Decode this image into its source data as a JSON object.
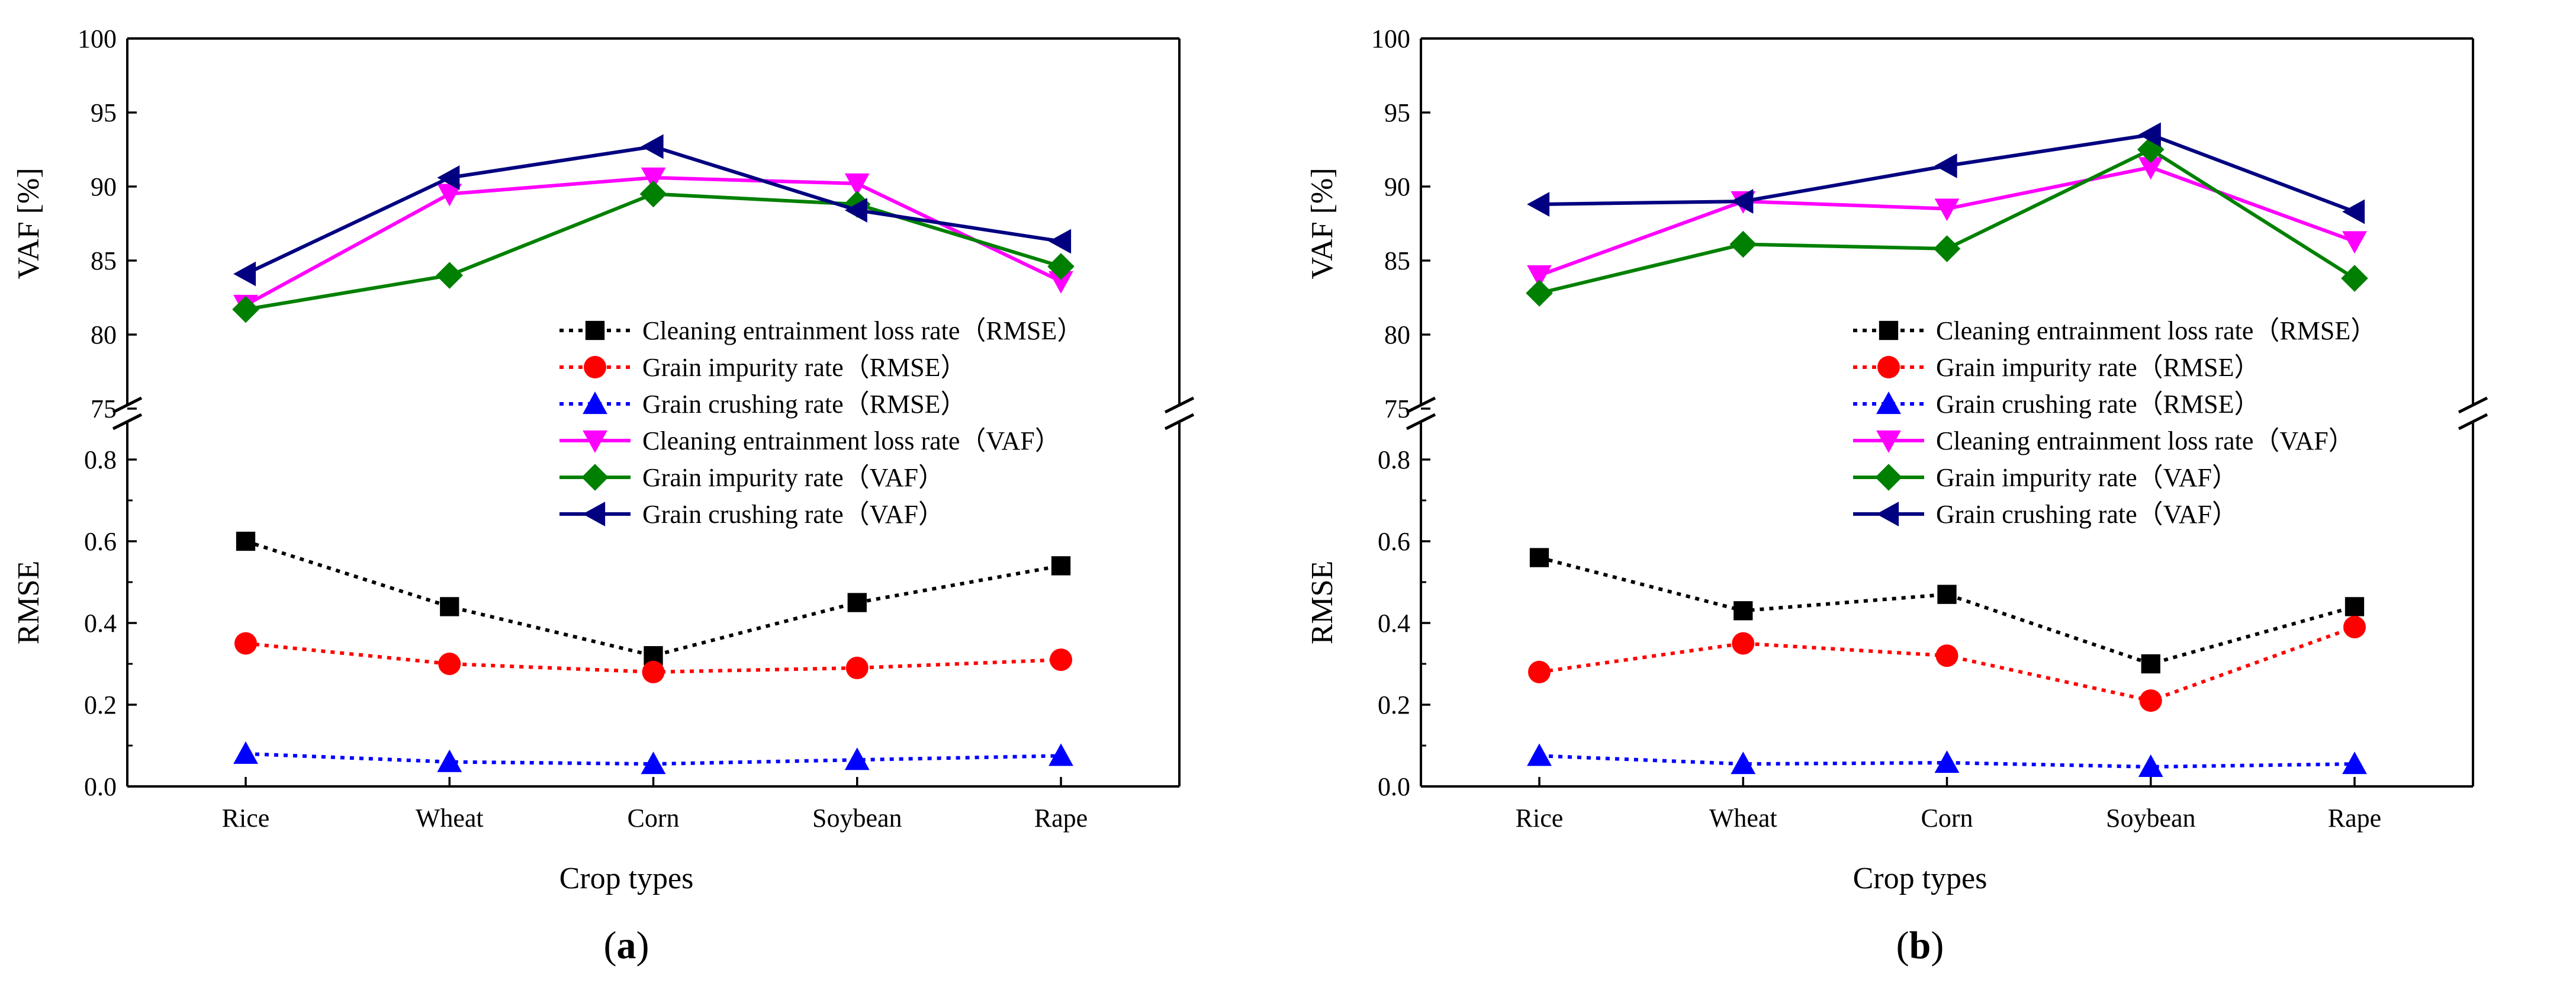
{
  "chart_data": [
    {
      "type": "line",
      "panel_label": "(a)",
      "panel_letter": "a",
      "xlabel": "Crop types",
      "ylabel_top": "VAF [%]",
      "ylabel_bottom": "RMSE",
      "categories": [
        "Rice",
        "Wheat",
        "Corn",
        "Soybean",
        "Rape"
      ],
      "ylim_top": [
        75,
        100
      ],
      "yticks_top": [
        "75",
        "80",
        "85",
        "90",
        "95",
        "100"
      ],
      "ylim_bottom": [
        0.0,
        0.9
      ],
      "yticks_bottom": [
        "0.0",
        "0.2",
        "0.4",
        "0.6",
        "0.8"
      ],
      "legend_position": "lower-right of VAF region",
      "series": [
        {
          "name": "Cleaning entrainment loss rate（RMSE）",
          "axis": "bottom",
          "color": "#000000",
          "style": "dotted",
          "marker": "square",
          "values": [
            0.6,
            0.44,
            0.32,
            0.45,
            0.54
          ]
        },
        {
          "name": "Grain impurity rate（RMSE）",
          "axis": "bottom",
          "color": "#ff0000",
          "style": "dotted",
          "marker": "circle",
          "values": [
            0.35,
            0.3,
            0.28,
            0.29,
            0.31
          ]
        },
        {
          "name": "Grain crushing rate（RMSE）",
          "axis": "bottom",
          "color": "#0000ff",
          "style": "dotted",
          "marker": "triangle-up",
          "values": [
            0.08,
            0.06,
            0.055,
            0.065,
            0.075
          ]
        },
        {
          "name": "Cleaning entrainment loss rate（VAF）",
          "axis": "top",
          "color": "#ff00ff",
          "style": "solid",
          "marker": "triangle-down",
          "values": [
            82.0,
            89.5,
            90.6,
            90.2,
            83.6
          ]
        },
        {
          "name": "Grain impurity rate（VAF）",
          "axis": "top",
          "color": "#008000",
          "style": "solid",
          "marker": "diamond",
          "values": [
            81.7,
            84.0,
            89.5,
            88.8,
            84.6
          ]
        },
        {
          "name": "Grain crushing rate（VAF）",
          "axis": "top",
          "color": "#000080",
          "style": "solid",
          "marker": "triangle-left",
          "values": [
            84.1,
            90.6,
            92.7,
            88.4,
            86.3
          ]
        }
      ]
    },
    {
      "type": "line",
      "panel_label": "(b)",
      "panel_letter": "b",
      "xlabel": "Crop types",
      "ylabel_top": "VAF [%]",
      "ylabel_bottom": "RMSE",
      "categories": [
        "Rice",
        "Wheat",
        "Corn",
        "Soybean",
        "Rape"
      ],
      "ylim_top": [
        75,
        100
      ],
      "yticks_top": [
        "75",
        "80",
        "85",
        "90",
        "95",
        "100"
      ],
      "ylim_bottom": [
        0.0,
        0.9
      ],
      "yticks_bottom": [
        "0.0",
        "0.2",
        "0.4",
        "0.6",
        "0.8"
      ],
      "legend_position": "lower-right of VAF region",
      "series": [
        {
          "name": "Cleaning entrainment loss rate（RMSE）",
          "axis": "bottom",
          "color": "#000000",
          "style": "dotted",
          "marker": "square",
          "values": [
            0.56,
            0.43,
            0.47,
            0.3,
            0.44
          ]
        },
        {
          "name": "Grain impurity rate（RMSE）",
          "axis": "bottom",
          "color": "#ff0000",
          "style": "dotted",
          "marker": "circle",
          "values": [
            0.28,
            0.35,
            0.32,
            0.21,
            0.39
          ]
        },
        {
          "name": "Grain crushing rate（RMSE）",
          "axis": "bottom",
          "color": "#0000ff",
          "style": "dotted",
          "marker": "triangle-up",
          "values": [
            0.075,
            0.055,
            0.058,
            0.048,
            0.055
          ]
        },
        {
          "name": "Cleaning entrainment loss rate（VAF）",
          "axis": "top",
          "color": "#ff00ff",
          "style": "solid",
          "marker": "triangle-down",
          "values": [
            84.0,
            89.0,
            88.5,
            91.3,
            86.3
          ]
        },
        {
          "name": "Grain impurity rate（VAF）",
          "axis": "top",
          "color": "#008000",
          "style": "solid",
          "marker": "diamond",
          "values": [
            82.8,
            86.1,
            85.8,
            92.5,
            83.8
          ]
        },
        {
          "name": "Grain crushing rate（VAF）",
          "axis": "top",
          "color": "#000080",
          "style": "solid",
          "marker": "triangle-left",
          "values": [
            88.8,
            89.0,
            91.4,
            93.5,
            88.3
          ]
        }
      ]
    }
  ]
}
